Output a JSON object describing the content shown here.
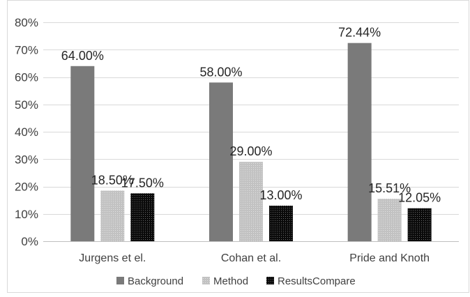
{
  "chart_data": {
    "type": "bar",
    "title": "",
    "xlabel": "",
    "ylabel": "",
    "ylim": [
      0,
      80
    ],
    "yticks": [
      0,
      10,
      20,
      30,
      40,
      50,
      60,
      70,
      80
    ],
    "ytick_labels": [
      "0%",
      "10%",
      "20%",
      "30%",
      "40%",
      "50%",
      "60%",
      "70%",
      "80%"
    ],
    "grid": "horizontal",
    "legend_position": "bottom",
    "categories": [
      "Jurgens et el.",
      "Cohan et al.",
      "Pride and Knoth"
    ],
    "series": [
      {
        "name": "Background",
        "values": [
          64.0,
          58.0,
          72.44
        ],
        "labels": [
          "64.00%",
          "58.00%",
          "72.44%"
        ],
        "color": "#7a7a7a",
        "pattern": "solid"
      },
      {
        "name": "Method",
        "values": [
          18.5,
          29.0,
          15.51
        ],
        "labels": [
          "18.50%",
          "29.00%",
          "15.51%"
        ],
        "color": "#bdbdbd",
        "pattern": "fine-dots"
      },
      {
        "name": "ResultsCompare",
        "values": [
          17.5,
          13.0,
          12.05
        ],
        "labels": [
          "17.50%",
          "13.00%",
          "12.05%"
        ],
        "color": "#111111",
        "pattern": "dots"
      }
    ]
  }
}
